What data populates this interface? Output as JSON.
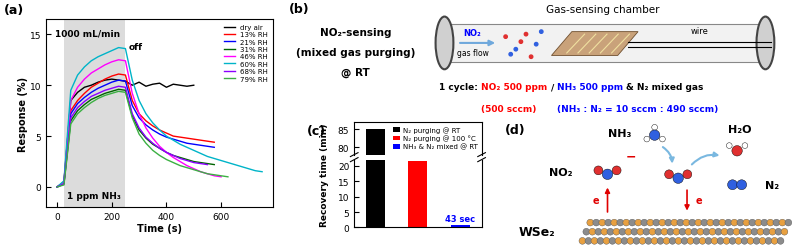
{
  "chart_data": [
    {
      "type": "line",
      "panel_label": "(a)",
      "x_label": "Time (s)",
      "y_label": "Response (%)",
      "x": [
        0,
        25,
        50,
        75,
        100,
        125,
        150,
        175,
        200,
        225,
        250,
        275,
        300,
        325,
        350,
        375,
        400,
        425,
        450,
        475,
        500,
        525,
        550,
        575,
        600,
        625,
        650,
        675,
        700,
        725,
        750
      ],
      "xlim": [
        -40,
        790
      ],
      "xticks": [
        0,
        200,
        400,
        600
      ],
      "ylim": [
        -2,
        16.5
      ],
      "yticks": [
        0,
        5,
        10,
        15
      ],
      "gas_on": [
        25,
        250
      ],
      "annotations": [
        "1000 mL/min",
        "off",
        "1 ppm NH₃"
      ],
      "legend": "upper right",
      "series": [
        {
          "name": "dry air",
          "color": "#000000",
          "values": [
            0,
            0.5,
            8.5,
            9.3,
            9.8,
            10.0,
            10.3,
            10.5,
            10.6,
            10.5,
            10.4,
            10.0,
            10.3,
            9.9,
            10.1,
            10.2,
            9.8,
            10.1,
            10.0,
            9.9,
            10.0,
            null,
            null,
            null,
            null,
            null,
            null,
            null,
            null,
            null,
            null
          ]
        },
        {
          "name": "13% RH",
          "color": "#ff0000",
          "values": [
            0,
            0.5,
            7.5,
            8.5,
            9.2,
            9.8,
            10.2,
            10.6,
            10.9,
            11.1,
            11.0,
            8.5,
            7.2,
            6.5,
            6.0,
            5.6,
            5.3,
            5.0,
            4.9,
            4.8,
            4.7,
            4.6,
            4.5,
            4.4,
            null,
            null,
            null,
            null,
            null,
            null,
            null
          ]
        },
        {
          "name": "21% RH",
          "color": "#0000ff",
          "values": [
            0,
            0.4,
            7.2,
            8.2,
            8.8,
            9.3,
            9.7,
            10.0,
            10.3,
            10.5,
            10.4,
            8.0,
            6.8,
            6.1,
            5.6,
            5.2,
            4.9,
            4.7,
            4.5,
            4.3,
            4.2,
            4.1,
            4.0,
            3.9,
            null,
            null,
            null,
            null,
            null,
            null,
            null
          ]
        },
        {
          "name": "31% RH",
          "color": "#006400",
          "values": [
            0,
            0.3,
            6.5,
            7.5,
            8.1,
            8.6,
            8.9,
            9.2,
            9.4,
            9.6,
            9.5,
            7.0,
            5.6,
            4.8,
            4.2,
            3.8,
            3.4,
            3.1,
            2.9,
            2.7,
            2.5,
            2.4,
            2.3,
            2.2,
            null,
            null,
            null,
            null,
            null,
            null,
            null
          ]
        },
        {
          "name": "46% RH",
          "color": "#ff00ff",
          "values": [
            0,
            0.5,
            8.5,
            9.8,
            10.6,
            11.2,
            11.6,
            12.0,
            12.3,
            12.5,
            12.4,
            9.2,
            7.2,
            5.8,
            4.8,
            4.0,
            3.4,
            2.9,
            2.5,
            2.1,
            1.8,
            1.5,
            1.3,
            1.1,
            1.0,
            null,
            null,
            null,
            null,
            null,
            null
          ]
        },
        {
          "name": "60% RH",
          "color": "#00b4c8",
          "values": [
            0,
            0.6,
            9.5,
            11.0,
            11.8,
            12.4,
            12.8,
            13.1,
            13.4,
            13.7,
            13.6,
            10.5,
            8.5,
            7.2,
            6.3,
            5.6,
            5.0,
            4.6,
            4.2,
            3.9,
            3.6,
            3.3,
            3.0,
            2.8,
            2.6,
            2.4,
            2.2,
            2.0,
            1.8,
            1.6,
            1.5
          ]
        },
        {
          "name": "68% RH",
          "color": "#8b00ff",
          "values": [
            0,
            0.3,
            6.8,
            7.8,
            8.4,
            8.9,
            9.2,
            9.5,
            9.7,
            9.9,
            9.8,
            7.2,
            5.8,
            4.9,
            4.3,
            3.8,
            3.4,
            3.1,
            2.8,
            2.6,
            2.4,
            2.3,
            2.2,
            null,
            null,
            null,
            null,
            null,
            null,
            null,
            null
          ]
        },
        {
          "name": "79% RH",
          "color": "#3cb043",
          "values": [
            0,
            0.2,
            6.2,
            7.2,
            7.8,
            8.3,
            8.7,
            9.0,
            9.2,
            9.4,
            9.3,
            6.8,
            5.2,
            4.3,
            3.6,
            3.1,
            2.7,
            2.4,
            2.1,
            1.9,
            1.7,
            1.5,
            1.3,
            1.2,
            1.1,
            1.0,
            null,
            null,
            null,
            null,
            null
          ]
        }
      ]
    },
    {
      "type": "bar",
      "panel_label": "(c)",
      "y_label": "Recovery time (min)",
      "categories": [
        "N₂ purging @ RT",
        "N₂ purging @ 100 °C",
        "NH₃ & N₂ mixed @ RT"
      ],
      "values": [
        85,
        21.5,
        0.7167
      ],
      "value_labels": [
        null,
        null,
        "43 sec"
      ],
      "colors": [
        "#000000",
        "#ff0000",
        "#0000ff"
      ],
      "ylim": [
        0,
        87
      ],
      "yticks": [
        0,
        5,
        10,
        15,
        20,
        80,
        85
      ],
      "break": [
        22,
        78
      ],
      "legend": "upper right",
      "tick_labels": "y",
      "data_labels": true
    }
  ],
  "diagram_b": {
    "panel_label": "(b)",
    "side_text": [
      "NO₂-sensing",
      "(mixed gas purging)",
      "@ RT"
    ],
    "chamber_label": "Gas-sensing chamber",
    "flow_labels": [
      "NO₂",
      "gas flow"
    ],
    "wire_label": "wire",
    "cycle_line": [
      {
        "text": "1 cycle:",
        "color": "#000000"
      },
      {
        "text": "NO₂ 500 ppm",
        "color": "#ff0000"
      },
      {
        "text": "/",
        "color": "#000000"
      },
      {
        "text": "NH₃ 500 ppm",
        "color": "#0000ff"
      },
      {
        "text": "& N₂ mixed gas",
        "color": "#000000"
      }
    ],
    "flow_line": [
      {
        "text": "(500 sccm)",
        "color": "#ff0000"
      },
      {
        "text": "(NH₃ : N₂ = 10 sccm : 490 sccm)",
        "color": "#0000ff"
      }
    ]
  },
  "diagram_d": {
    "panel_label": "(d)",
    "molecule_labels": [
      "NH₃",
      "H₂O",
      "NO₂",
      "N₂"
    ],
    "electron_labels": [
      "e",
      "e"
    ],
    "charge": "−",
    "substrate": "WSe₂"
  }
}
